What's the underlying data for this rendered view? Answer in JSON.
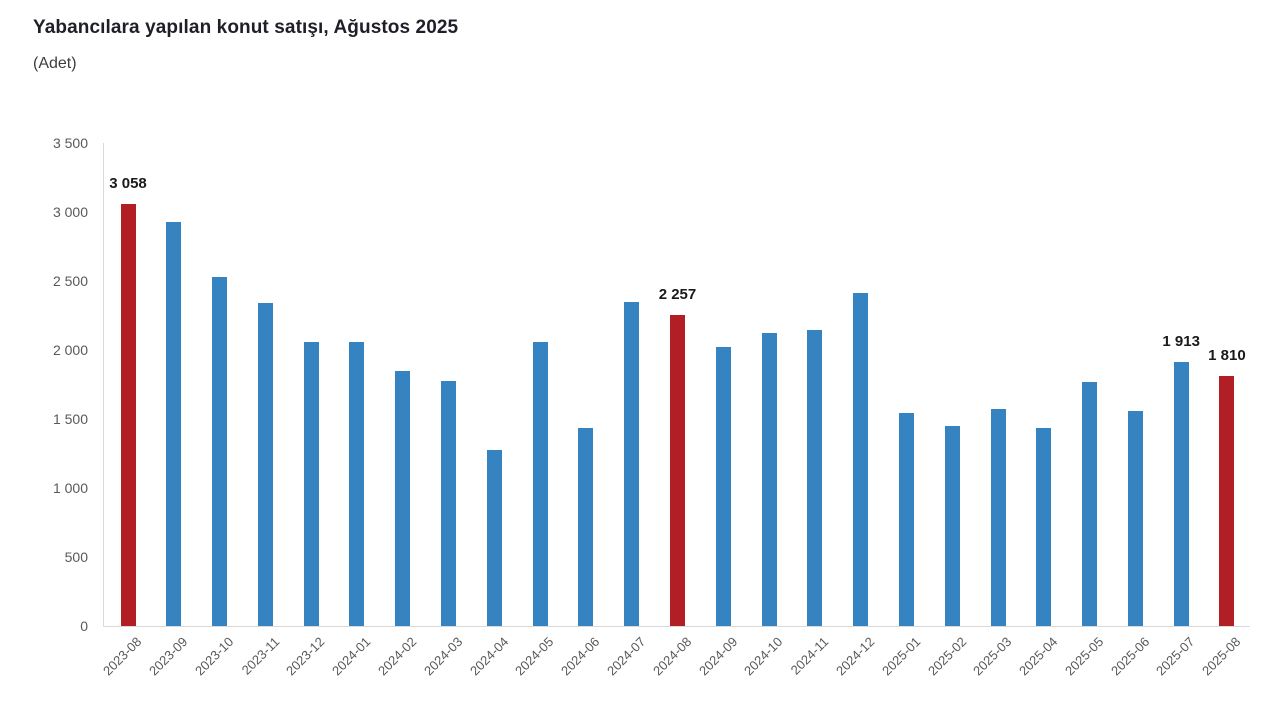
{
  "chart_data": {
    "type": "bar",
    "title": "Yabancılara yapılan konut satışı, Ağustos 2025",
    "subtitle": "(Adet)",
    "xlabel": "",
    "ylabel": "",
    "ylim": [
      0,
      3500
    ],
    "y_tick_labels": [
      "0",
      "500",
      "1 000",
      "1 500",
      "2 000",
      "2 500",
      "3 000",
      "3 500"
    ],
    "grid": "off",
    "legend": "none",
    "categories": [
      "2023-08",
      "2023-09",
      "2023-10",
      "2023-11",
      "2023-12",
      "2024-01",
      "2024-02",
      "2024-03",
      "2024-04",
      "2024-05",
      "2024-06",
      "2024-07",
      "2024-08",
      "2024-09",
      "2024-10",
      "2024-11",
      "2024-12",
      "2025-01",
      "2025-02",
      "2025-03",
      "2025-04",
      "2025-05",
      "2025-06",
      "2025-07",
      "2025-08"
    ],
    "values": [
      3058,
      2925,
      2530,
      2340,
      2060,
      2060,
      1845,
      1775,
      1275,
      2060,
      1435,
      2350,
      2257,
      2020,
      2125,
      2145,
      2410,
      1545,
      1450,
      1570,
      1435,
      1765,
      1560,
      1913,
      1810
    ],
    "highlight_indices": [
      0,
      12,
      24
    ],
    "annotations": [
      {
        "index": 0,
        "text": "3 058"
      },
      {
        "index": 12,
        "text": "2 257"
      },
      {
        "index": 23,
        "text": "1 913"
      },
      {
        "index": 24,
        "text": "1 810"
      }
    ],
    "colors": {
      "bar_default": "#3583c1",
      "bar_highlight": "#b11f24",
      "axis_line": "#d9d9d9",
      "tick_text": "#595959",
      "label_text": "#1a1a1a",
      "title_text": "#1f1f28"
    }
  }
}
